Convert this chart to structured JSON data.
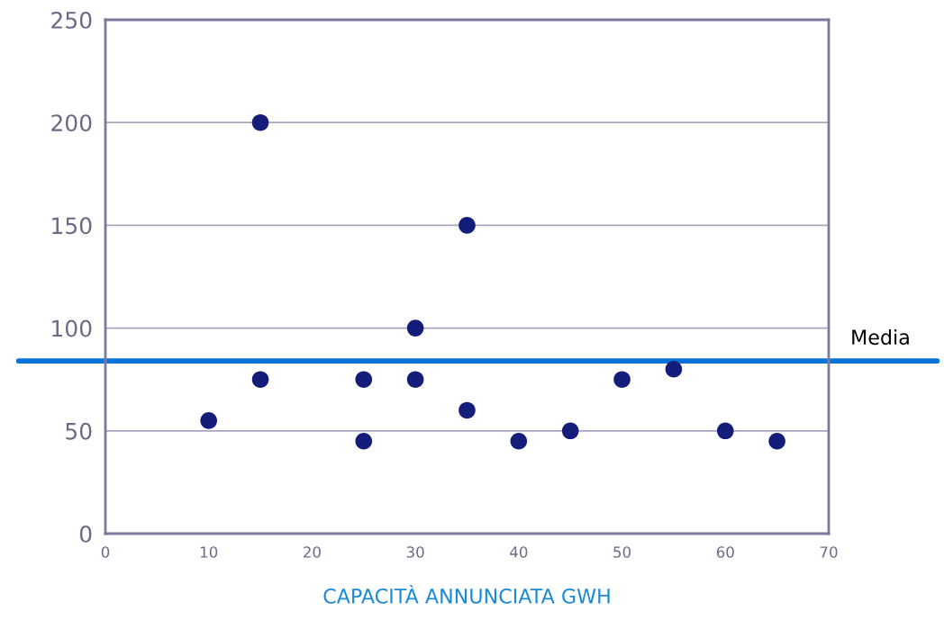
{
  "chart_data": {
    "type": "scatter",
    "xlabel": "CAPACITÀ ANNUNCIATA GWH",
    "series": [
      {
        "color": "#141e7a",
        "x": [
          10,
          15,
          15,
          25,
          25,
          30,
          30,
          35,
          35,
          40,
          45,
          50,
          55,
          60,
          65
        ],
        "values": [
          55,
          200,
          75,
          75,
          45,
          100,
          75,
          150,
          60,
          45,
          50,
          75,
          80,
          50,
          45
        ]
      }
    ],
    "xlim": [
      0,
      70
    ],
    "xticks": [
      0,
      10,
      20,
      30,
      40,
      50,
      60,
      70
    ],
    "ylim": [
      0,
      250
    ],
    "yticks": [
      0,
      50,
      100,
      150,
      200,
      250
    ],
    "grid": "y",
    "marker": "circle",
    "ref_lines": [
      {
        "axis": "y",
        "value": 84,
        "label": "Media",
        "color": "#0a73d9"
      }
    ]
  }
}
